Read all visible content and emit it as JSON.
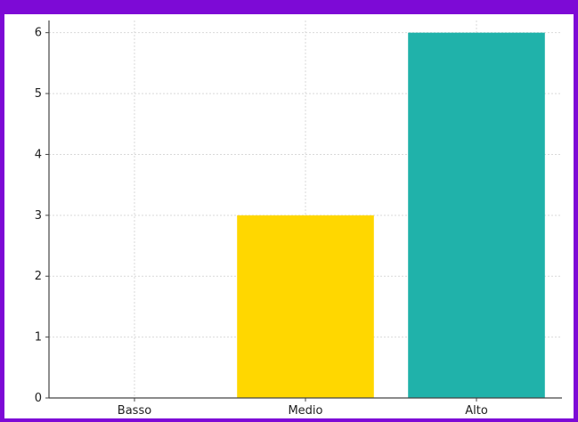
{
  "colors": {
    "frame": "#7d0ad6",
    "grid": "#d9d9d9",
    "axis": "#444444"
  },
  "chart_data": {
    "type": "bar",
    "categories": [
      "Basso",
      "Medio",
      "Alto"
    ],
    "values": [
      0,
      3,
      6
    ],
    "colors": [
      "#ffd700",
      "#ffd700",
      "#20b2aa"
    ],
    "title": "",
    "xlabel": "",
    "ylabel": "",
    "ylim": [
      0,
      6.2
    ],
    "yticks": [
      0,
      1,
      2,
      3,
      4,
      5,
      6
    ],
    "grid": true
  }
}
